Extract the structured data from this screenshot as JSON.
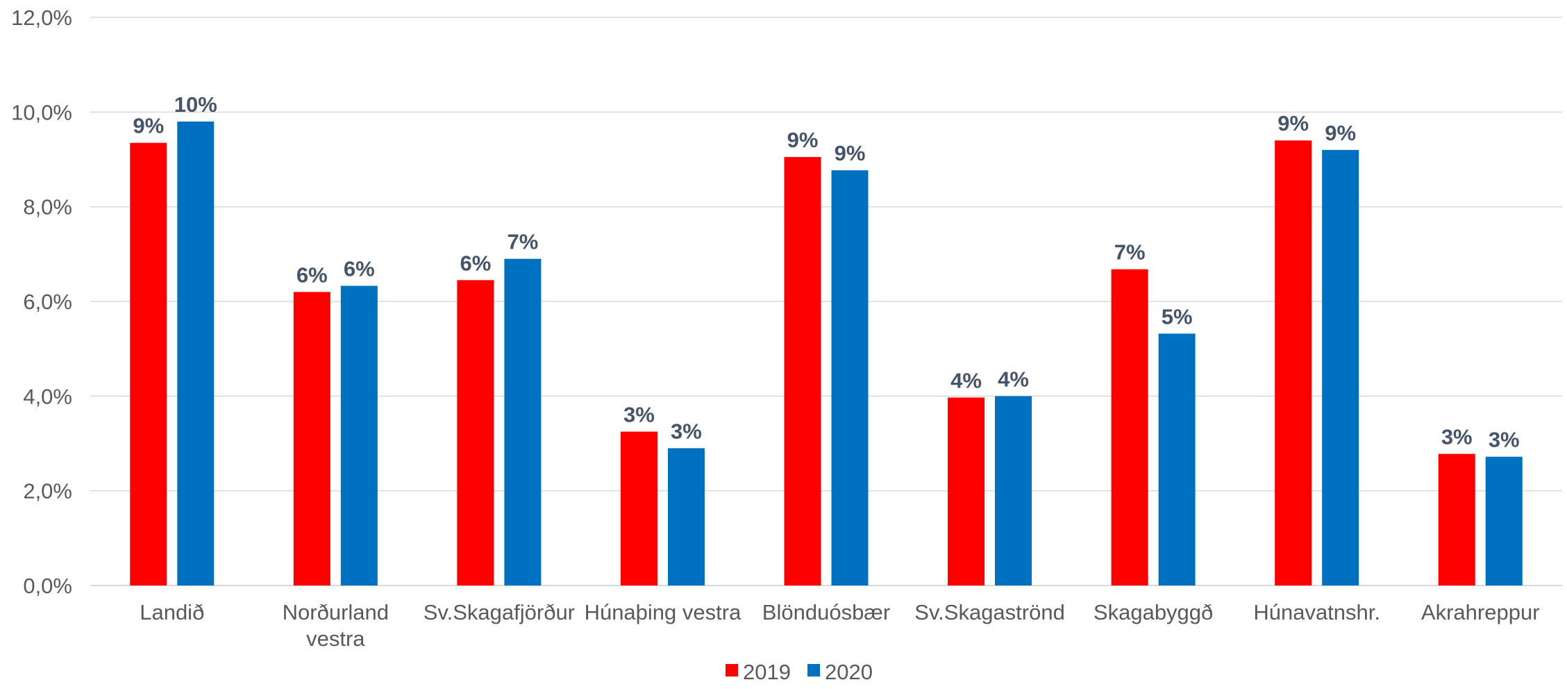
{
  "chart_data": {
    "type": "bar",
    "title": "",
    "xlabel": "",
    "ylabel": "",
    "ylim": [
      0,
      12
    ],
    "y_ticks": [
      "0,0%",
      "2,0%",
      "4,0%",
      "6,0%",
      "8,0%",
      "10,0%",
      "12,0%"
    ],
    "y_tick_values": [
      0,
      2,
      4,
      6,
      8,
      10,
      12
    ],
    "grid": true,
    "legend_position": "bottom",
    "categories": [
      [
        "Landið"
      ],
      [
        "Norðurland",
        "vestra"
      ],
      [
        "Sv.Skagafjörður"
      ],
      [
        "Húnaþing vestra"
      ],
      [
        "Blönduósbær"
      ],
      [
        "Sv.Skagaströnd"
      ],
      [
        "Skagabyggð"
      ],
      [
        "Húnavatnshr."
      ],
      [
        "Akrahreppur"
      ]
    ],
    "series": [
      {
        "name": "2019",
        "color": "#ff0000",
        "values": [
          9.35,
          6.2,
          6.45,
          3.25,
          9.05,
          3.97,
          6.68,
          9.4,
          2.78
        ],
        "labels": [
          "9%",
          "6%",
          "6%",
          "3%",
          "9%",
          "4%",
          "7%",
          "9%",
          "3%"
        ]
      },
      {
        "name": "2020",
        "color": "#0070c0",
        "values": [
          9.8,
          6.33,
          6.9,
          2.9,
          8.77,
          4.0,
          5.32,
          9.2,
          2.72
        ],
        "labels": [
          "10%",
          "6%",
          "7%",
          "3%",
          "9%",
          "4%",
          "5%",
          "9%",
          "3%"
        ]
      }
    ]
  }
}
